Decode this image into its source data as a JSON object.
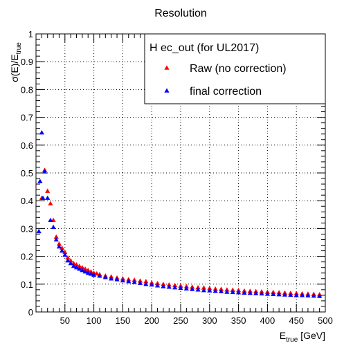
{
  "chart_data": {
    "type": "scatter",
    "title": "Resolution",
    "xlabel": {
      "main": "E",
      "sub": "true",
      "tail": " [GeV]"
    },
    "ylabel": {
      "main": "σ(E)/E",
      "sub": "true"
    },
    "xlim": [
      0,
      500
    ],
    "ylim": [
      0,
      1
    ],
    "grid": true,
    "x_ticks": [
      50,
      100,
      150,
      200,
      250,
      300,
      350,
      400,
      450,
      500
    ],
    "y_ticks": [
      0,
      0.1,
      0.2,
      0.3,
      0.4,
      0.5,
      0.6,
      0.7,
      0.8,
      0.9,
      1
    ],
    "y_tick_labels": [
      "0",
      "0.1",
      "0.2",
      "0.3",
      "0.4",
      "0.5",
      "0.6",
      "0.7",
      "0.8",
      "0.9",
      "1"
    ],
    "legend": {
      "title": "H ec_out (for UL2017)",
      "placement": "top-right"
    },
    "series": [
      {
        "name": "Raw (no correction)",
        "color": "#ff0000",
        "marker": "triangle-up",
        "points": [
          [
            5,
            0.29
          ],
          [
            7,
            0.47
          ],
          [
            10,
            0.41
          ],
          [
            15,
            0.51
          ],
          [
            20,
            0.435
          ],
          [
            25,
            0.39
          ],
          [
            30,
            0.33
          ],
          [
            35,
            0.27
          ],
          [
            40,
            0.245
          ],
          [
            45,
            0.23
          ],
          [
            50,
            0.215
          ],
          [
            55,
            0.195
          ],
          [
            60,
            0.185
          ],
          [
            65,
            0.175
          ],
          [
            70,
            0.17
          ],
          [
            75,
            0.165
          ],
          [
            80,
            0.16
          ],
          [
            85,
            0.155
          ],
          [
            90,
            0.15
          ],
          [
            95,
            0.145
          ],
          [
            100,
            0.14
          ],
          [
            105,
            0.138
          ],
          [
            110,
            0.135
          ],
          [
            120,
            0.13
          ],
          [
            130,
            0.127
          ],
          [
            140,
            0.123
          ],
          [
            150,
            0.12
          ],
          [
            160,
            0.117
          ],
          [
            170,
            0.115
          ],
          [
            180,
            0.112
          ],
          [
            190,
            0.11
          ],
          [
            200,
            0.105
          ],
          [
            210,
            0.103
          ],
          [
            220,
            0.1
          ],
          [
            230,
            0.098
          ],
          [
            240,
            0.096
          ],
          [
            250,
            0.094
          ],
          [
            260,
            0.092
          ],
          [
            270,
            0.09
          ],
          [
            280,
            0.088
          ],
          [
            290,
            0.087
          ],
          [
            300,
            0.085
          ],
          [
            310,
            0.083
          ],
          [
            320,
            0.082
          ],
          [
            330,
            0.08
          ],
          [
            340,
            0.079
          ],
          [
            350,
            0.078
          ],
          [
            360,
            0.076
          ],
          [
            370,
            0.075
          ],
          [
            380,
            0.074
          ],
          [
            390,
            0.073
          ],
          [
            400,
            0.072
          ],
          [
            410,
            0.071
          ],
          [
            420,
            0.07
          ],
          [
            430,
            0.069
          ],
          [
            440,
            0.068
          ],
          [
            450,
            0.067
          ],
          [
            460,
            0.066
          ],
          [
            470,
            0.065
          ],
          [
            480,
            0.064
          ],
          [
            490,
            0.063
          ]
        ]
      },
      {
        "name": "final correction",
        "color": "#0000ff",
        "marker": "triangle-up",
        "points": [
          [
            5,
            0.29
          ],
          [
            7,
            0.47
          ],
          [
            10,
            0.645
          ],
          [
            12,
            0.41
          ],
          [
            15,
            0.505
          ],
          [
            20,
            0.41
          ],
          [
            25,
            0.33
          ],
          [
            30,
            0.305
          ],
          [
            35,
            0.26
          ],
          [
            40,
            0.235
          ],
          [
            45,
            0.22
          ],
          [
            50,
            0.205
          ],
          [
            55,
            0.185
          ],
          [
            60,
            0.175
          ],
          [
            65,
            0.165
          ],
          [
            70,
            0.16
          ],
          [
            75,
            0.155
          ],
          [
            80,
            0.15
          ],
          [
            85,
            0.145
          ],
          [
            90,
            0.14
          ],
          [
            95,
            0.137
          ],
          [
            100,
            0.133
          ],
          [
            110,
            0.13
          ],
          [
            120,
            0.125
          ],
          [
            130,
            0.12
          ],
          [
            140,
            0.117
          ],
          [
            150,
            0.113
          ],
          [
            160,
            0.11
          ],
          [
            170,
            0.107
          ],
          [
            180,
            0.104
          ],
          [
            190,
            0.1
          ],
          [
            200,
            0.098
          ],
          [
            210,
            0.095
          ],
          [
            220,
            0.092
          ],
          [
            230,
            0.09
          ],
          [
            240,
            0.088
          ],
          [
            250,
            0.086
          ],
          [
            260,
            0.084
          ],
          [
            270,
            0.082
          ],
          [
            280,
            0.08
          ],
          [
            290,
            0.078
          ],
          [
            300,
            0.077
          ],
          [
            310,
            0.075
          ],
          [
            320,
            0.074
          ],
          [
            330,
            0.072
          ],
          [
            340,
            0.071
          ],
          [
            350,
            0.07
          ],
          [
            360,
            0.069
          ],
          [
            370,
            0.068
          ],
          [
            380,
            0.067
          ],
          [
            390,
            0.066
          ],
          [
            400,
            0.065
          ],
          [
            410,
            0.064
          ],
          [
            420,
            0.063
          ],
          [
            430,
            0.062
          ],
          [
            440,
            0.061
          ],
          [
            450,
            0.06
          ],
          [
            460,
            0.06
          ],
          [
            470,
            0.059
          ],
          [
            480,
            0.058
          ],
          [
            490,
            0.057
          ]
        ]
      }
    ]
  }
}
